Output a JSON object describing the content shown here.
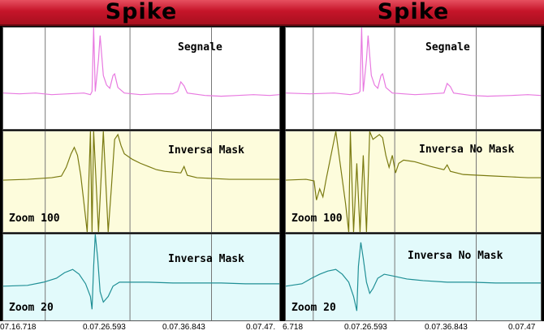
{
  "panels": [
    {
      "title": "Spike",
      "strips": [
        {
          "label": "Segnale",
          "zoom": ""
        },
        {
          "label": "Inversa Mask",
          "zoom": "Zoom 100"
        },
        {
          "label": "Inversa Mask",
          "zoom": "Zoom 20"
        }
      ]
    },
    {
      "title": "Spike",
      "strips": [
        {
          "label": "Segnale",
          "zoom": ""
        },
        {
          "label": "Inversa No Mask",
          "zoom": "Zoom 100"
        },
        {
          "label": "Inversa No Mask",
          "zoom": "Zoom 20"
        }
      ]
    }
  ],
  "time_axis": [
    "07.16.718",
    "0.07.26.593",
    "0.07.36.843",
    "0.07.47.",
    "6.718",
    "0.07.26.593",
    "0.07.36.843",
    "0.07.47"
  ],
  "colors": {
    "title_bar": "#c6152a",
    "signal_trace": "#e879e0",
    "mask_trace": "#7a7a10",
    "zoom20_trace": "#1f8f95",
    "strip1_bg": "#ffffff",
    "strip2_bg": "#fdfcdc",
    "strip3_bg": "#e2fafb"
  }
}
